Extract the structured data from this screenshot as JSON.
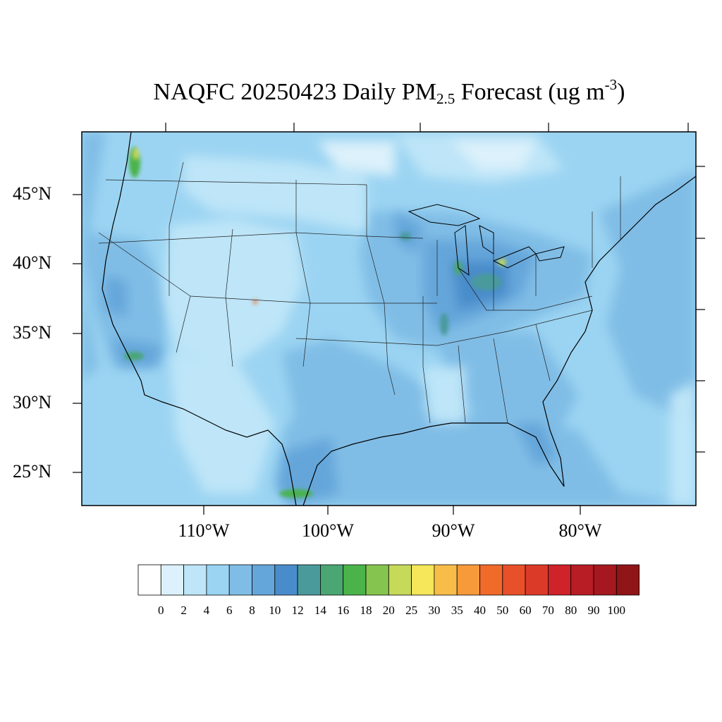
{
  "title": {
    "prefix": "NAQFC 20250423 Daily PM",
    "subscript": "2.5",
    "middle": " Forecast (ug m",
    "superscript": "-3",
    "suffix": ")"
  },
  "lat_labels": [
    "45°N",
    "40°N",
    "35°N",
    "30°N",
    "25°N"
  ],
  "lon_labels": [
    "110°W",
    "100°W",
    "90°W",
    "80°W"
  ],
  "colorbar": {
    "levels": [
      "0",
      "2",
      "4",
      "6",
      "8",
      "10",
      "12",
      "14",
      "16",
      "18",
      "20",
      "25",
      "30",
      "35",
      "40",
      "50",
      "60",
      "70",
      "80",
      "90",
      "100"
    ],
    "colors": [
      "#ffffff",
      "#dcf1fb",
      "#bee5f8",
      "#9bd4f2",
      "#80bde6",
      "#65a6da",
      "#4a8ccb",
      "#4a9a9c",
      "#4aa673",
      "#4ab34a",
      "#86c450",
      "#c6d959",
      "#f5e65a",
      "#f8bd48",
      "#f69a3a",
      "#f06a2a",
      "#e8502a",
      "#dc3a28",
      "#cf2229",
      "#b81c25",
      "#a5181f",
      "#8f1518"
    ]
  },
  "colors": {
    "land_background": "#9bd4f2",
    "ocean_background": "#80bde6"
  }
}
